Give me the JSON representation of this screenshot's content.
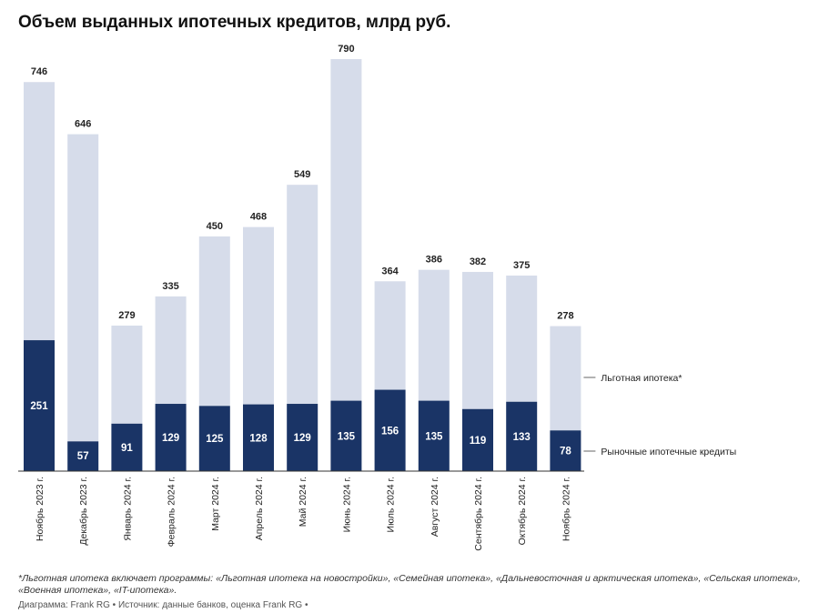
{
  "chart_data": {
    "type": "bar",
    "stacked": true,
    "title": "Объем выданных ипотечных кредитов, млрд руб.",
    "categories": [
      "Ноябрь 2023 г.",
      "Декабрь 2023 г.",
      "Январь 2024 г.",
      "Февраль 2024 г.",
      "Март 2024 г.",
      "Апрель 2024 г.",
      "Май 2024 г.",
      "Июнь 2024 г.",
      "Июль 2024 г.",
      "Август 2024 г.",
      "Сентябрь 2024 г.",
      "Октябрь 2024 г.",
      "Ноябрь 2024 г."
    ],
    "totals": [
      746,
      646,
      279,
      335,
      450,
      468,
      549,
      790,
      364,
      386,
      382,
      375,
      278
    ],
    "series": [
      {
        "name": "Рыночные ипотечные кредиты",
        "color": "#1a3466",
        "values": [
          251,
          57,
          91,
          129,
          125,
          128,
          129,
          135,
          156,
          135,
          119,
          133,
          78
        ]
      },
      {
        "name": "Льготная ипотека*",
        "color": "#d6dcea",
        "values": [
          495,
          589,
          188,
          206,
          325,
          340,
          420,
          655,
          208,
          251,
          263,
          242,
          200
        ]
      }
    ],
    "ylim": [
      0,
      800
    ],
    "legend_position": "right"
  },
  "footnote": "*Льготная ипотека включает программы: «Льготная ипотека на новостройки», «Семейная ипотека», «Дальневосточная и арктическая ипотека», «Сельская ипотека», «Военная ипотека», «IT-ипотека».",
  "credit": "Диаграмма: Frank RG • Источник: данные банков, оценка Frank RG •"
}
